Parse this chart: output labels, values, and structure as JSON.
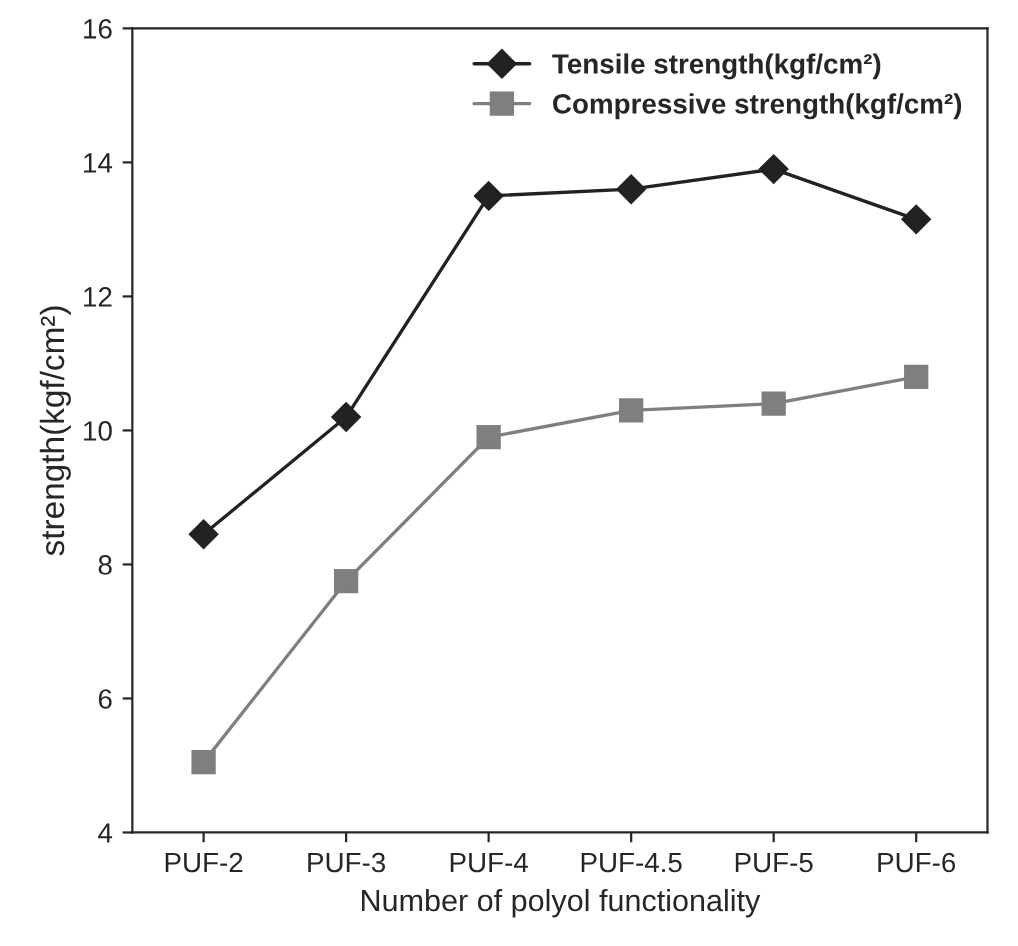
{
  "chart_data": {
    "type": "line",
    "xlabel": "Number of polyol functionality",
    "ylabel": "strength(kgf/cm²)",
    "categories": [
      "PUF-2",
      "PUF-3",
      "PUF-4",
      "PUF-4.5",
      "PUF-5",
      "PUF-6"
    ],
    "series": [
      {
        "name": "Tensile strength(kgf/cm²)",
        "color": "#222222",
        "marker": "diamond",
        "values": [
          8.45,
          10.2,
          13.5,
          13.6,
          13.9,
          13.15
        ]
      },
      {
        "name": "Compressive strength(kgf/cm²)",
        "color": "#7f7f7f",
        "marker": "square",
        "values": [
          5.05,
          7.75,
          9.9,
          10.3,
          10.4,
          10.8
        ]
      }
    ],
    "ylim": [
      4,
      16
    ],
    "yticks": [
      4,
      6,
      8,
      10,
      12,
      14,
      16
    ],
    "grid": false,
    "legend": "top right",
    "line_style": "solid"
  }
}
